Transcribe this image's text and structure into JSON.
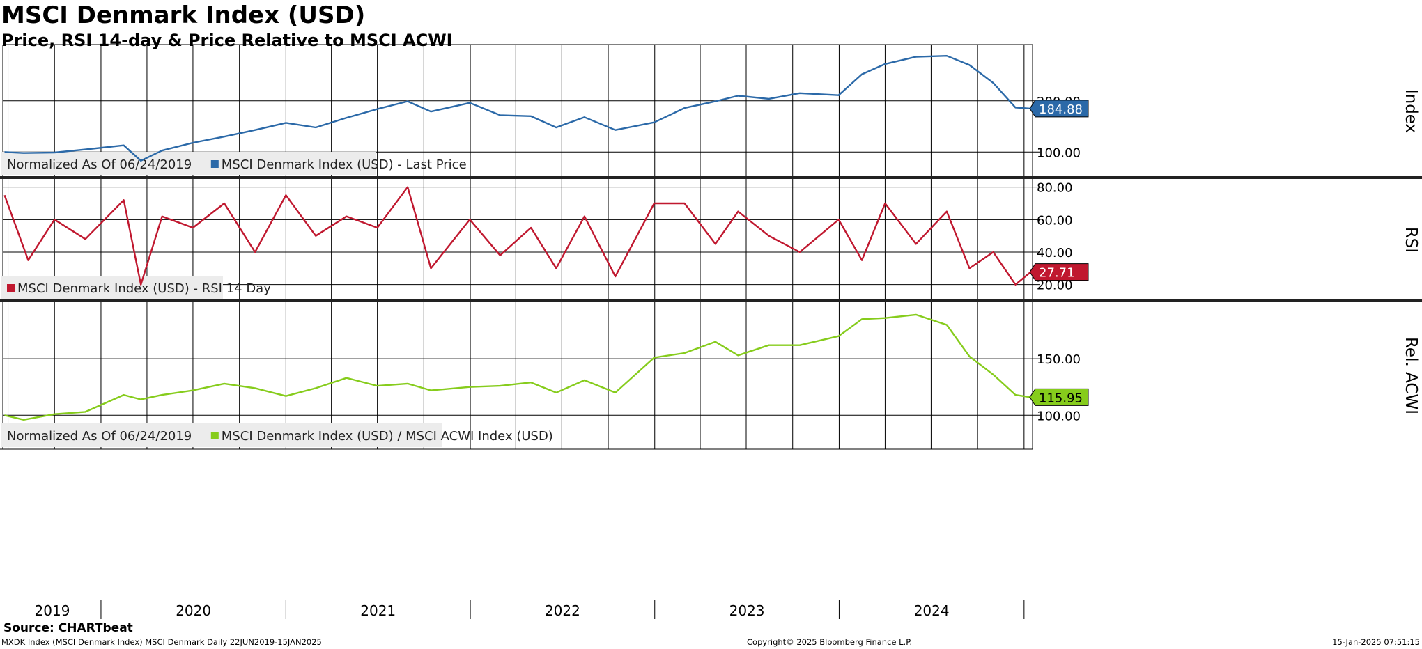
{
  "title": "MSCI Denmark Index (USD)",
  "subtitle": "Price, RSI 14-day & Price Relative to MSCI ACWI",
  "source": "Source: CHARTbeat",
  "footer": {
    "left": "MXDK Index (MSCI Denmark Index) MSCI Denmark  Daily 22JUN2019-15JAN2025",
    "center": "Copyright© 2025 Bloomberg Finance L.P.",
    "right": "15-Jan-2025 07:51:15"
  },
  "colors": {
    "price": "#2b69a8",
    "rsi": "#c0182f",
    "relative": "#86cc1c",
    "legend_bg": "#ececec",
    "grid": "#000000"
  },
  "chart_data": [
    {
      "type": "line",
      "axis_label": "Index",
      "legend": [
        "Normalized As Of 06/24/2019",
        "MSCI Denmark Index (USD) - Last Price"
      ],
      "last_value": 184.88,
      "last_value_label": "184.88",
      "ylim": [
        50,
        310
      ],
      "yticks": [
        100,
        200
      ],
      "ytick_labels": [
        "100.00",
        "200.00"
      ],
      "series": [
        {
          "name": "MSCI Denmark Index (USD) - Last Price",
          "x": [
            "2019-06-24",
            "2019-08-01",
            "2019-10-01",
            "2019-12-01",
            "2020-02-15",
            "2020-03-20",
            "2020-05-01",
            "2020-07-01",
            "2020-09-01",
            "2020-11-01",
            "2021-01-01",
            "2021-03-01",
            "2021-05-01",
            "2021-07-01",
            "2021-08-30",
            "2021-10-15",
            "2021-12-31",
            "2022-03-01",
            "2022-05-01",
            "2022-06-20",
            "2022-08-15",
            "2022-10-15",
            "2022-12-31",
            "2023-03-01",
            "2023-05-01",
            "2023-06-15",
            "2023-08-15",
            "2023-10-15",
            "2023-12-31",
            "2024-02-15",
            "2024-04-01",
            "2024-06-01",
            "2024-08-01",
            "2024-09-15",
            "2024-11-01",
            "2024-12-15",
            "2025-01-14"
          ],
          "values": [
            100,
            98,
            99,
            105,
            113,
            83,
            103,
            118,
            130,
            143,
            157,
            148,
            167,
            184,
            199,
            179,
            196,
            172,
            170,
            148,
            168,
            143,
            158,
            186,
            199,
            210,
            204,
            215,
            211,
            252,
            272,
            286,
            288,
            270,
            235,
            187,
            184.88
          ]
        }
      ]
    },
    {
      "type": "line",
      "axis_label": "RSI",
      "legend": [
        "MSCI Denmark Index (USD) - RSI 14 Day"
      ],
      "last_value": 27.71,
      "last_value_label": "27.71",
      "ylim": [
        10,
        85
      ],
      "yticks": [
        20,
        40,
        60,
        80
      ],
      "ytick_labels": [
        "20.00",
        "40.00",
        "60.00",
        "80.00"
      ],
      "series": [
        {
          "name": "MSCI Denmark Index (USD) - RSI 14 Day",
          "x": [
            "2019-06-24",
            "2019-08-10",
            "2019-10-01",
            "2019-12-01",
            "2020-02-15",
            "2020-03-20",
            "2020-05-01",
            "2020-07-01",
            "2020-09-01",
            "2020-11-01",
            "2021-01-01",
            "2021-03-01",
            "2021-05-01",
            "2021-07-01",
            "2021-08-30",
            "2021-10-15",
            "2021-12-31",
            "2022-03-01",
            "2022-05-01",
            "2022-06-20",
            "2022-08-15",
            "2022-10-15",
            "2022-12-31",
            "2023-03-01",
            "2023-05-01",
            "2023-06-15",
            "2023-08-15",
            "2023-10-15",
            "2023-12-31",
            "2024-02-15",
            "2024-04-01",
            "2024-06-01",
            "2024-08-01",
            "2024-09-15",
            "2024-11-01",
            "2024-12-15",
            "2025-01-14"
          ],
          "values": [
            75,
            35,
            60,
            48,
            72,
            20,
            62,
            55,
            70,
            40,
            75,
            50,
            62,
            55,
            80,
            30,
            60,
            38,
            55,
            30,
            62,
            25,
            70,
            70,
            45,
            65,
            50,
            40,
            60,
            35,
            70,
            45,
            65,
            30,
            40,
            20,
            27.71
          ]
        }
      ]
    },
    {
      "type": "line",
      "axis_label": "Rel. ACWI",
      "legend": [
        "Normalized As Of 06/24/2019",
        "MSCI Denmark Index (USD) / MSCI ACWI Index (USD)"
      ],
      "last_value": 115.95,
      "last_value_label": "115.95",
      "ylim": [
        70,
        200
      ],
      "yticks": [
        100,
        150
      ],
      "ytick_labels": [
        "100.00",
        "150.00"
      ],
      "series": [
        {
          "name": "MSCI Denmark Index (USD) / MSCI ACWI Index (USD)",
          "x": [
            "2019-06-24",
            "2019-08-01",
            "2019-10-01",
            "2019-12-01",
            "2020-02-15",
            "2020-03-20",
            "2020-05-01",
            "2020-07-01",
            "2020-09-01",
            "2020-11-01",
            "2021-01-01",
            "2021-03-01",
            "2021-05-01",
            "2021-07-01",
            "2021-08-30",
            "2021-10-15",
            "2021-12-31",
            "2022-03-01",
            "2022-05-01",
            "2022-06-20",
            "2022-08-15",
            "2022-10-15",
            "2022-12-31",
            "2023-03-01",
            "2023-05-01",
            "2023-06-15",
            "2023-08-15",
            "2023-10-15",
            "2023-12-31",
            "2024-02-15",
            "2024-04-01",
            "2024-06-01",
            "2024-08-01",
            "2024-09-15",
            "2024-11-01",
            "2024-12-15",
            "2025-01-14"
          ],
          "values": [
            100,
            96,
            101,
            103,
            118,
            114,
            118,
            122,
            128,
            124,
            117,
            124,
            133,
            126,
            128,
            122,
            125,
            126,
            129,
            120,
            131,
            120,
            151,
            155,
            165,
            153,
            162,
            162,
            170,
            185,
            186,
            189,
            180,
            152,
            136,
            118,
            115.95
          ]
        }
      ]
    }
  ],
  "x_axis": {
    "start": "2019-06-22",
    "end": "2025-01-15",
    "year_labels": [
      "2019",
      "2020",
      "2021",
      "2022",
      "2023",
      "2024"
    ]
  }
}
